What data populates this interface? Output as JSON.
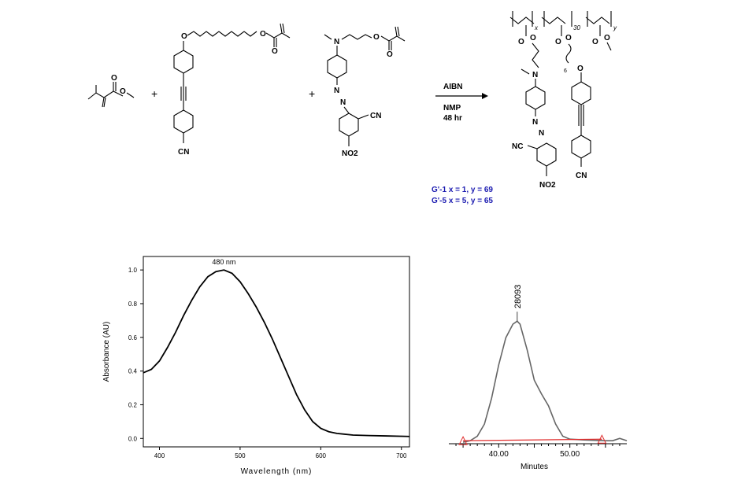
{
  "scheme": {
    "reagent": "AIBN",
    "solvent": "NMP",
    "time": "48 hr",
    "plus": "+",
    "labels": {
      "cn1": "CN",
      "cn2": "CN",
      "cn3": "NC",
      "cn4": "CN",
      "no2a": "NO2",
      "no2b": "NO2",
      "n_amine1": "N",
      "n_amine2": "N",
      "azo1": "N",
      "azo2": "N",
      "azo3": "N",
      "azo4": "N",
      "o_atom": "O",
      "sub_x": "x",
      "sub_30": "30",
      "sub_y": "y",
      "sub_6": "6"
    },
    "legend": [
      "G'-1   x = 1, y = 69",
      "G'-5   x = 5, y = 65"
    ]
  },
  "chart_data": [
    {
      "type": "line",
      "xlabel": "Wavelength  (nm)",
      "ylabel": "Absorbance (AU)",
      "xlim": [
        380,
        710
      ],
      "ylim": [
        -0.05,
        1.08
      ],
      "xticks": [
        "400",
        "500",
        "600",
        "700"
      ],
      "yticks": [
        "0.0",
        "0.2",
        "0.4",
        "0.6",
        "0.8",
        "1.0"
      ],
      "annotation": "480 nm",
      "series": [
        {
          "x": [
            380,
            390,
            400,
            410,
            420,
            430,
            440,
            450,
            460,
            470,
            480,
            490,
            500,
            510,
            520,
            530,
            540,
            550,
            560,
            570,
            580,
            590,
            600,
            610,
            620,
            630,
            640,
            660,
            680,
            700,
            710
          ],
          "values": [
            0.39,
            0.41,
            0.46,
            0.54,
            0.63,
            0.73,
            0.82,
            0.9,
            0.96,
            0.99,
            1.0,
            0.98,
            0.93,
            0.86,
            0.78,
            0.69,
            0.59,
            0.48,
            0.37,
            0.26,
            0.17,
            0.1,
            0.06,
            0.04,
            0.03,
            0.025,
            0.02,
            0.017,
            0.015,
            0.013,
            0.012
          ]
        }
      ]
    },
    {
      "type": "line",
      "xlabel": "Minutes",
      "xlim": [
        33,
        58
      ],
      "ylim": [
        0,
        1.05
      ],
      "xticks": [
        "40.00",
        "50.00"
      ],
      "annotation": "28093",
      "series": [
        {
          "x": [
            35,
            36,
            37,
            38,
            39,
            40,
            41,
            42,
            42.6,
            43,
            44,
            45,
            46,
            47,
            48,
            49,
            50,
            52,
            54,
            55,
            56,
            57,
            58
          ],
          "values": [
            0.01,
            0.02,
            0.05,
            0.13,
            0.3,
            0.52,
            0.7,
            0.79,
            0.81,
            0.79,
            0.62,
            0.42,
            0.33,
            0.25,
            0.13,
            0.05,
            0.03,
            0.025,
            0.022,
            0.02,
            0.02,
            0.035,
            0.02
          ]
        },
        {
          "x": [
            35,
            54.5
          ],
          "values": [
            0.02,
            0.03
          ]
        }
      ],
      "colors": [
        "#666666",
        "#e03030"
      ]
    }
  ]
}
